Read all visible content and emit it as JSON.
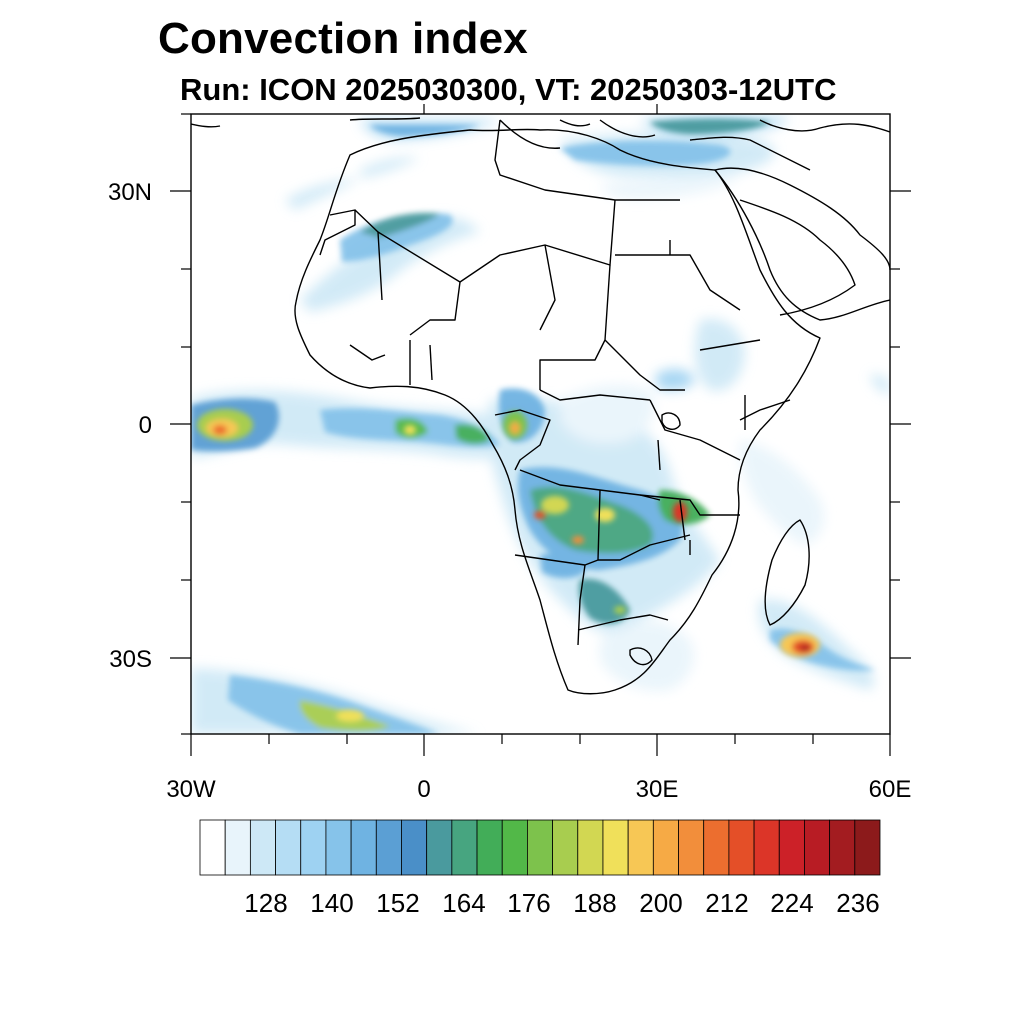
{
  "title": "Convection index",
  "subtitle": "Run: ICON 2025030300,  VT: 20250303-12UTC",
  "axes": {
    "lat_labels": [
      "30N",
      "0",
      "30S"
    ],
    "lon_labels": [
      "30W",
      "0",
      "30E",
      "60E"
    ]
  },
  "colorbar": {
    "labels": [
      "128",
      "140",
      "152",
      "164",
      "176",
      "188",
      "200",
      "212",
      "224",
      "236"
    ],
    "colors": [
      "#ffffff",
      "#e8f4fb",
      "#cde8f6",
      "#b5ddf4",
      "#9ed2f2",
      "#86c3ea",
      "#6fb3e2",
      "#5b9fd4",
      "#4a8fc8",
      "#4a9a9e",
      "#47a580",
      "#42ad58",
      "#52b848",
      "#7dc24c",
      "#a8cd4f",
      "#d2d752",
      "#f0e05a",
      "#f7c755",
      "#f6aa45",
      "#f28e3b",
      "#ec6e2f",
      "#e44f28",
      "#dc3528",
      "#cc2128",
      "#b81c24",
      "#a31c20",
      "#8c1a1b"
    ]
  }
}
